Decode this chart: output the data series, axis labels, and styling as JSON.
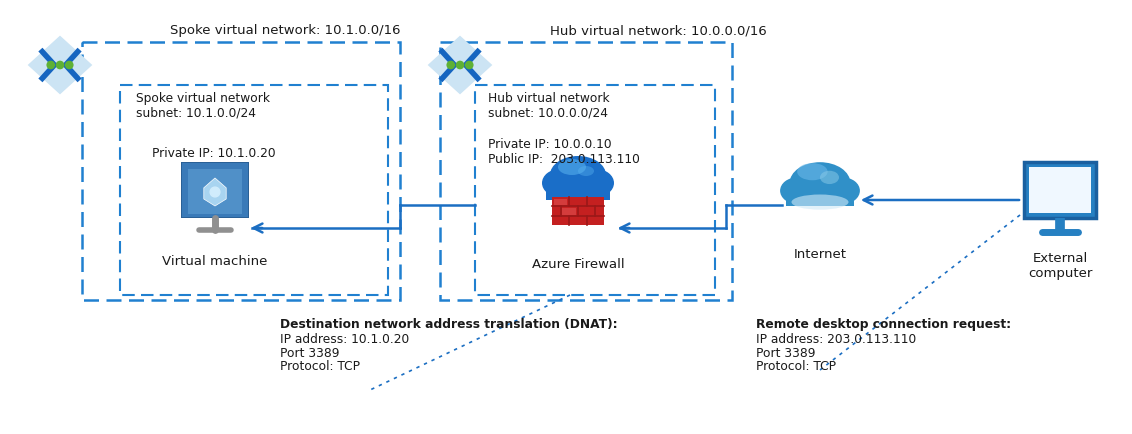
{
  "bg_color": "#ffffff",
  "blue": "#1b6ec2",
  "blue_dashed": "#2080d0",
  "green_dot": "#5eb135",
  "spoke_vnet_label": "Spoke virtual network: 10.1.0.0/16",
  "hub_vnet_label": "Hub virtual network: 10.0.0.0/16",
  "spoke_subnet_label": "Spoke virtual network\nsubnet: 10.1.0.0/24",
  "hub_subnet_label": "Hub virtual network\nsubnet: 10.0.0.0/24",
  "vm_label": "Virtual machine",
  "vm_ip_label": "Private IP: 10.1.0.20",
  "firewall_label": "Azure Firewall",
  "firewall_private_ip": "Private IP: 10.0.0.10",
  "firewall_public_ip": "Public IP:  203.0.113.110",
  "internet_label": "Internet",
  "ext_computer_label": "External\ncomputer",
  "dnat_title": "Destination network address translation (DNAT):",
  "dnat_ip": "IP address: 10.1.0.20",
  "dnat_port": "Port 3389",
  "dnat_protocol": "Protocol: TCP",
  "rdp_title": "Remote desktop connection request:",
  "rdp_ip": "IP address: 203.0.113.110",
  "rdp_port": "Port 3389",
  "rdp_protocol": "Protocol: TCP"
}
